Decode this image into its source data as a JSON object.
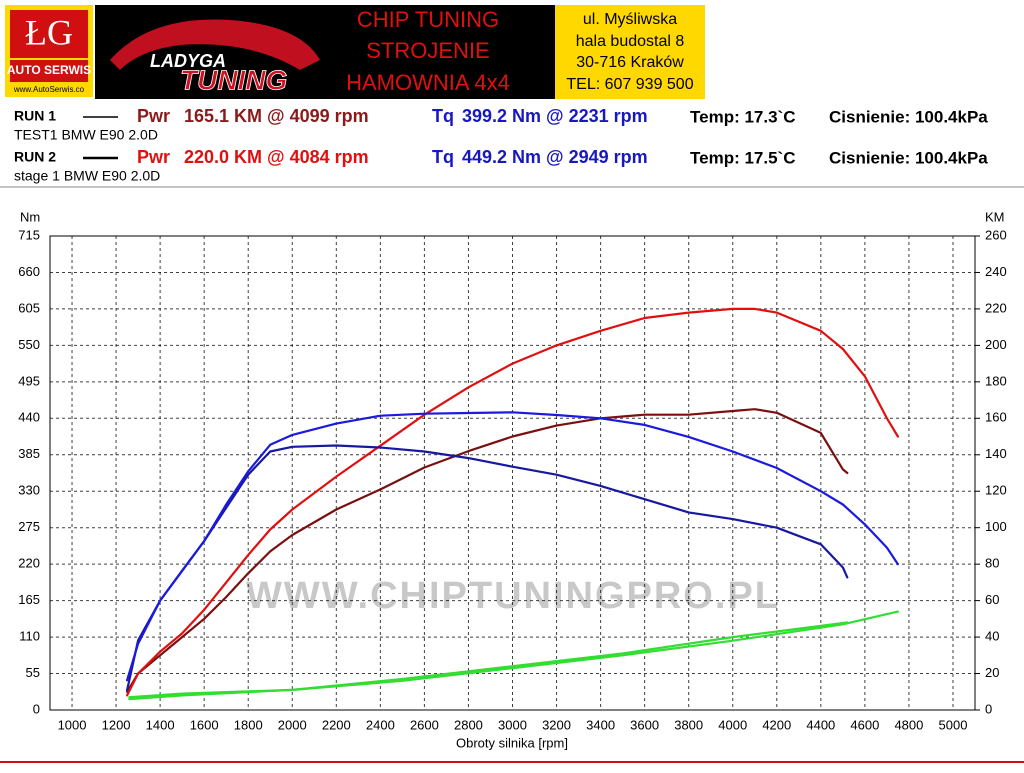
{
  "header": {
    "logo": "ŁG",
    "logo_sub": "AUTO SERWIS",
    "logo_url": "www.AutoSerwis.co",
    "brand_top": "LADYGA",
    "brand_bottom": "TUNING",
    "services": [
      "CHIP TUNING",
      "STROJENIE",
      "HAMOWNIA 4x4"
    ],
    "address": [
      "ul. Myśliwska",
      "hala budostal 8",
      "30-716 Kraków",
      "TEL: 607 939 500"
    ]
  },
  "runs": [
    {
      "name": "RUN 1",
      "car": "TEST1 BMW E90 2.0D",
      "pwr_label": "Pwr",
      "pwr": "165.1 KM @ 4099 rpm",
      "tq_label": "Tq",
      "tq": "399.2 Nm @ 2231 rpm",
      "temp": "Temp: 17.3`C",
      "pressure": "Cisnienie: 100.4kPa"
    },
    {
      "name": "RUN 2",
      "car": "stage 1 BMW E90 2.0D",
      "pwr_label": "Pwr",
      "pwr": "220.0 KM @ 4084 rpm",
      "tq_label": "Tq",
      "tq": "449.2 Nm @ 2949 rpm",
      "temp": "Temp: 17.5`C",
      "pressure": "Cisnienie: 100.4kPa"
    }
  ],
  "chart_data": {
    "type": "line",
    "watermark": "WWW.CHIPTUNINGPRO.PL",
    "x_label": "Obroty silnika [rpm]",
    "y_label": "Nm",
    "y2_label": "KM",
    "grid": true,
    "xlim": [
      900,
      5100
    ],
    "xticks": [
      1000,
      1200,
      1400,
      1600,
      1800,
      2000,
      2200,
      2400,
      2600,
      2800,
      3000,
      3200,
      3400,
      3600,
      3800,
      4000,
      4200,
      4400,
      4600,
      4800,
      5000
    ],
    "ylim": [
      0,
      715
    ],
    "yticks": [
      0,
      55,
      110,
      165,
      220,
      275,
      330,
      385,
      440,
      495,
      550,
      605,
      660,
      715
    ],
    "y2lim": [
      0,
      260
    ],
    "y2ticks": [
      0,
      20,
      40,
      60,
      80,
      100,
      120,
      140,
      160,
      180,
      200,
      220,
      240,
      260
    ],
    "series": [
      {
        "color": "#33dd33",
        "axis": "y2",
        "x": [
          1260,
          1500,
          2000,
          2500,
          3000,
          3500,
          4000,
          4520
        ],
        "values": [
          7,
          9,
          11,
          17,
          24,
          31,
          40,
          48
        ]
      },
      {
        "color": "#33dd33",
        "axis": "y2",
        "x": [
          1260,
          1500,
          2000,
          2500,
          3000,
          3500,
          4000,
          4500,
          4750
        ],
        "values": [
          6,
          8,
          11,
          16,
          23,
          30,
          38,
          47,
          54
        ]
      },
      {
        "color": "#7a1010",
        "axis": "y2",
        "x": [
          1250,
          1300,
          1400,
          1500,
          1600,
          1700,
          1800,
          1900,
          2000,
          2200,
          2400,
          2600,
          2800,
          3000,
          3200,
          3400,
          3600,
          3800,
          4000,
          4100,
          4200,
          4400,
          4500,
          4520
        ],
        "values": [
          10,
          20,
          30,
          40,
          50,
          62,
          75,
          87,
          96,
          110,
          121,
          133,
          142,
          150,
          156,
          160,
          162,
          162,
          164,
          165,
          163,
          152,
          132,
          130
        ]
      },
      {
        "color": "#e01010",
        "axis": "y2",
        "x": [
          1250,
          1300,
          1400,
          1500,
          1600,
          1700,
          1800,
          1900,
          2000,
          2200,
          2400,
          2600,
          2800,
          3000,
          3200,
          3400,
          3600,
          3800,
          4000,
          4100,
          4200,
          4400,
          4500,
          4600,
          4700,
          4750
        ],
        "values": [
          8,
          20,
          32,
          42,
          55,
          70,
          85,
          99,
          110,
          128,
          145,
          162,
          177,
          190,
          200,
          208,
          215,
          218,
          220,
          220,
          218,
          208,
          198,
          183,
          160,
          150
        ]
      },
      {
        "color": "#1818a0",
        "x": [
          1250,
          1300,
          1400,
          1500,
          1600,
          1700,
          1800,
          1900,
          2000,
          2200,
          2400,
          2600,
          2800,
          3000,
          3200,
          3400,
          3600,
          3800,
          4000,
          4200,
          4400,
          4500,
          4520
        ],
        "values": [
          30,
          105,
          165,
          210,
          255,
          305,
          355,
          390,
          397,
          399,
          396,
          390,
          380,
          367,
          355,
          338,
          318,
          298,
          288,
          275,
          250,
          215,
          200
        ]
      },
      {
        "color": "#1a1ae0",
        "x": [
          1250,
          1300,
          1400,
          1500,
          1600,
          1700,
          1800,
          1900,
          2000,
          2200,
          2400,
          2600,
          2800,
          3000,
          3200,
          3400,
          3600,
          3800,
          4000,
          4200,
          4400,
          4500,
          4600,
          4700,
          4750
        ],
        "values": [
          45,
          100,
          165,
          210,
          255,
          310,
          360,
          400,
          415,
          432,
          444,
          447,
          448,
          449,
          445,
          440,
          430,
          412,
          390,
          365,
          330,
          310,
          280,
          245,
          220
        ]
      }
    ]
  }
}
